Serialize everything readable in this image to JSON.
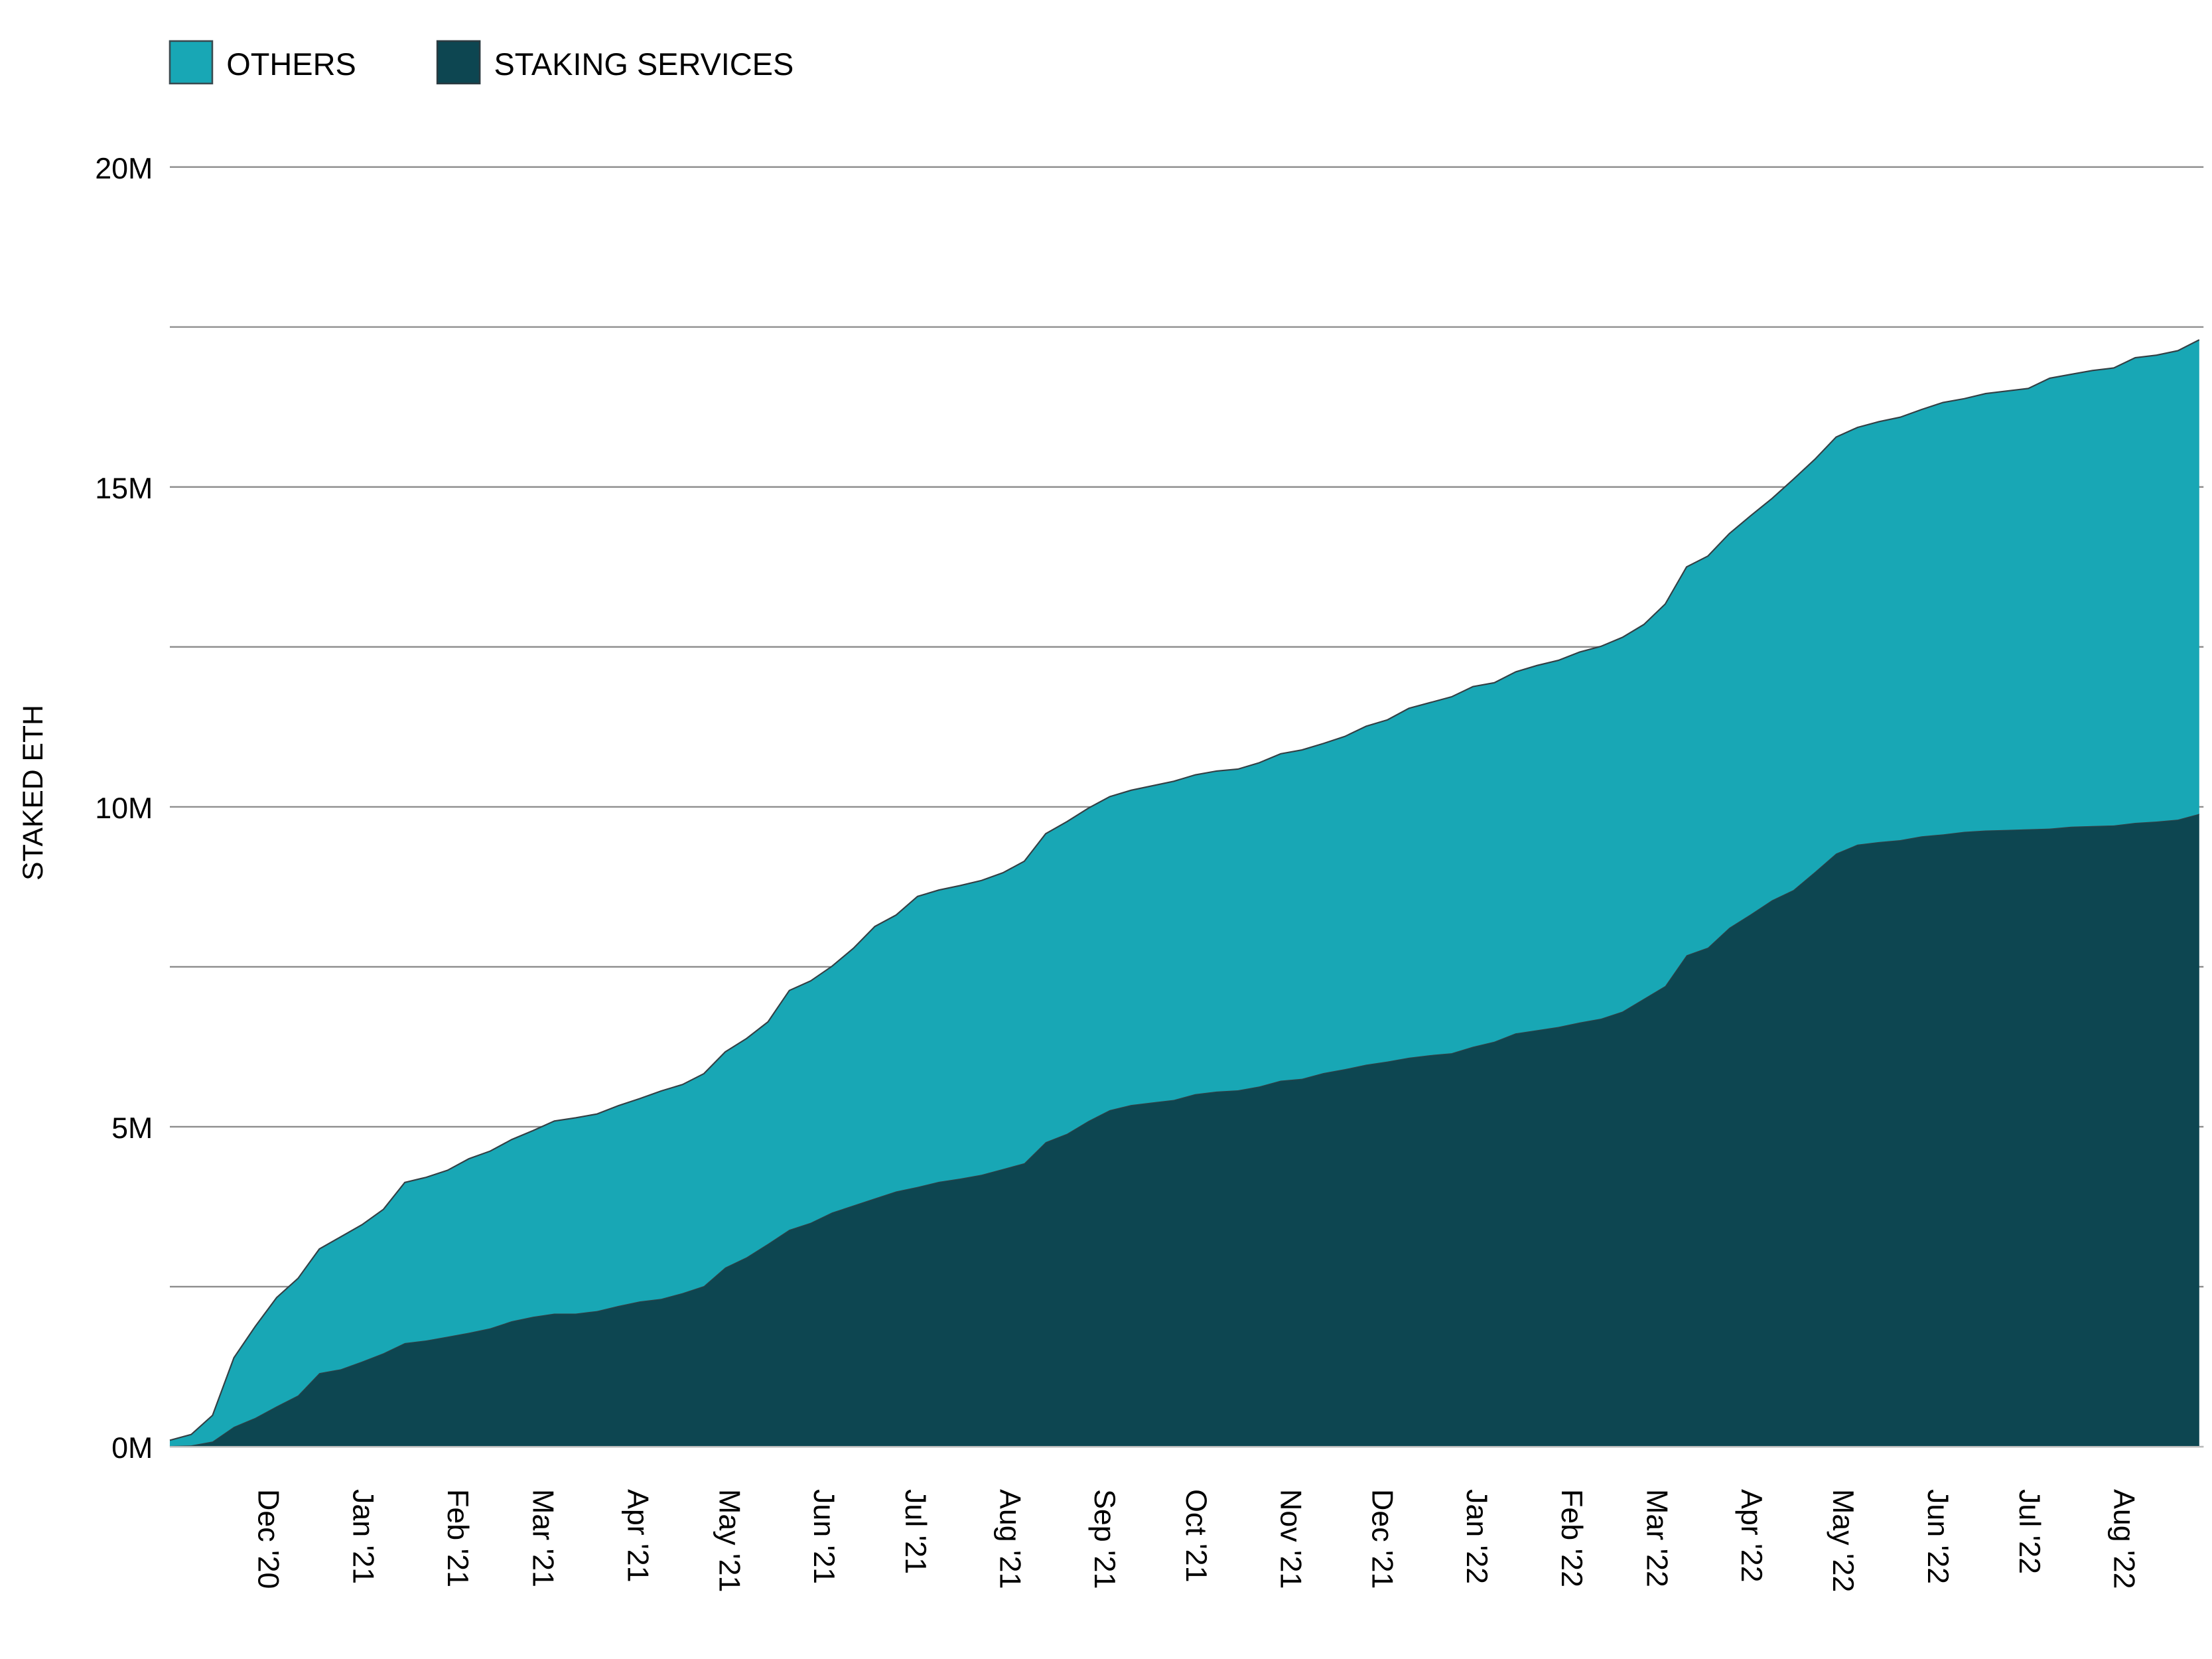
{
  "chart_data": {
    "type": "area",
    "stacked": true,
    "title": "",
    "xlabel": "",
    "ylabel": "STAKED ETH",
    "ylim": [
      0,
      20
    ],
    "y_unit": "M",
    "y_ticks": [
      {
        "value": 0,
        "label": "0M"
      },
      {
        "value": 5,
        "label": "5M"
      },
      {
        "value": 10,
        "label": "10M"
      },
      {
        "value": 15,
        "label": "15M"
      },
      {
        "value": 20,
        "label": "20M"
      }
    ],
    "y_gridlines": [
      0,
      2.5,
      5,
      7.5,
      10,
      12.5,
      15,
      17.5,
      20
    ],
    "grid": true,
    "legend_position": "top-left",
    "x_ticks": [
      {
        "date": "2020-12-01",
        "label": "Dec '20"
      },
      {
        "date": "2021-01-01",
        "label": "Jan '21"
      },
      {
        "date": "2021-02-01",
        "label": "Feb '21"
      },
      {
        "date": "2021-03-01",
        "label": "Mar '21"
      },
      {
        "date": "2021-04-01",
        "label": "Apr '21"
      },
      {
        "date": "2021-05-01",
        "label": "May '21"
      },
      {
        "date": "2021-06-01",
        "label": "Jun '21"
      },
      {
        "date": "2021-07-01",
        "label": "Jul '21"
      },
      {
        "date": "2021-08-01",
        "label": "Aug '21"
      },
      {
        "date": "2021-09-01",
        "label": "Sep '21"
      },
      {
        "date": "2021-10-01",
        "label": "Oct '21"
      },
      {
        "date": "2021-11-01",
        "label": "Nov '21"
      },
      {
        "date": "2021-12-01",
        "label": "Dec '21"
      },
      {
        "date": "2022-01-01",
        "label": "Jan '22"
      },
      {
        "date": "2022-02-01",
        "label": "Feb '22"
      },
      {
        "date": "2022-03-01",
        "label": "Mar '22"
      },
      {
        "date": "2022-04-01",
        "label": "Apr '22"
      },
      {
        "date": "2022-05-01",
        "label": "May '22"
      },
      {
        "date": "2022-06-01",
        "label": "Jun '22"
      },
      {
        "date": "2022-07-01",
        "label": "Jul '22"
      },
      {
        "date": "2022-08-01",
        "label": "Aug '22"
      }
    ],
    "x": [
      "2020-11-01",
      "2020-11-08",
      "2020-11-15",
      "2020-11-22",
      "2020-11-29",
      "2020-12-06",
      "2020-12-13",
      "2020-12-20",
      "2020-12-27",
      "2021-01-03",
      "2021-01-10",
      "2021-01-17",
      "2021-01-24",
      "2021-01-31",
      "2021-02-07",
      "2021-02-14",
      "2021-02-21",
      "2021-02-28",
      "2021-03-07",
      "2021-03-14",
      "2021-03-21",
      "2021-03-28",
      "2021-04-04",
      "2021-04-11",
      "2021-04-18",
      "2021-04-25",
      "2021-05-02",
      "2021-05-09",
      "2021-05-16",
      "2021-05-23",
      "2021-05-30",
      "2021-06-06",
      "2021-06-13",
      "2021-06-20",
      "2021-06-27",
      "2021-07-04",
      "2021-07-11",
      "2021-07-18",
      "2021-07-25",
      "2021-08-01",
      "2021-08-08",
      "2021-08-15",
      "2021-08-22",
      "2021-08-29",
      "2021-09-05",
      "2021-09-12",
      "2021-09-19",
      "2021-09-26",
      "2021-10-03",
      "2021-10-10",
      "2021-10-17",
      "2021-10-24",
      "2021-10-31",
      "2021-11-07",
      "2021-11-14",
      "2021-11-21",
      "2021-11-28",
      "2021-12-05",
      "2021-12-12",
      "2021-12-19",
      "2021-12-26",
      "2022-01-02",
      "2022-01-09",
      "2022-01-16",
      "2022-01-23",
      "2022-01-30",
      "2022-02-06",
      "2022-02-13",
      "2022-02-20",
      "2022-02-27",
      "2022-03-06",
      "2022-03-13",
      "2022-03-20",
      "2022-03-27",
      "2022-04-03",
      "2022-04-10",
      "2022-04-17",
      "2022-04-24",
      "2022-05-01",
      "2022-05-08",
      "2022-05-15",
      "2022-05-22",
      "2022-05-29",
      "2022-06-05",
      "2022-06-12",
      "2022-06-19",
      "2022-06-26",
      "2022-07-03",
      "2022-07-10",
      "2022-07-17",
      "2022-07-24",
      "2022-07-31",
      "2022-08-07",
      "2022-08-14",
      "2022-08-21",
      "2022-08-28"
    ],
    "series": [
      {
        "name": "STAKING SERVICES",
        "color": "#0D4651",
        "values": [
          0.01,
          0.02,
          0.08,
          0.31,
          0.45,
          0.63,
          0.8,
          1.15,
          1.21,
          1.33,
          1.46,
          1.62,
          1.66,
          1.72,
          1.78,
          1.85,
          1.96,
          2.03,
          2.08,
          2.08,
          2.12,
          2.2,
          2.27,
          2.31,
          2.4,
          2.51,
          2.8,
          2.96,
          3.17,
          3.39,
          3.5,
          3.66,
          3.77,
          3.88,
          3.99,
          4.06,
          4.14,
          4.19,
          4.25,
          4.34,
          4.43,
          4.76,
          4.89,
          5.09,
          5.26,
          5.34,
          5.38,
          5.42,
          5.51,
          5.55,
          5.57,
          5.63,
          5.72,
          5.75,
          5.84,
          5.9,
          5.97,
          6.02,
          6.08,
          6.12,
          6.15,
          6.25,
          6.33,
          6.46,
          6.51,
          6.56,
          6.63,
          6.69,
          6.8,
          7.0,
          7.2,
          7.68,
          7.8,
          8.11,
          8.32,
          8.54,
          8.7,
          8.98,
          9.27,
          9.41,
          9.45,
          9.48,
          9.54,
          9.57,
          9.61,
          9.63,
          9.64,
          9.65,
          9.66,
          9.69,
          9.7,
          9.71,
          9.75,
          9.77,
          9.8,
          9.89
        ]
      },
      {
        "name": "OTHERS",
        "color": "#18A7B5",
        "values": [
          0.09,
          0.17,
          0.41,
          1.08,
          1.43,
          1.7,
          1.83,
          1.94,
          2.07,
          2.14,
          2.25,
          2.51,
          2.55,
          2.6,
          2.72,
          2.77,
          2.84,
          2.91,
          3.01,
          3.06,
          3.08,
          3.13,
          3.17,
          3.25,
          3.26,
          3.32,
          3.37,
          3.42,
          3.47,
          3.74,
          3.78,
          3.85,
          4.02,
          4.25,
          4.32,
          4.54,
          4.56,
          4.58,
          4.6,
          4.63,
          4.72,
          4.82,
          4.88,
          4.89,
          4.9,
          4.92,
          4.95,
          4.98,
          4.99,
          5.01,
          5.02,
          5.06,
          5.11,
          5.14,
          5.15,
          5.2,
          5.29,
          5.34,
          5.46,
          5.51,
          5.57,
          5.63,
          5.61,
          5.65,
          5.7,
          5.73,
          5.79,
          5.82,
          5.85,
          5.85,
          5.97,
          6.07,
          6.12,
          6.16,
          6.23,
          6.28,
          6.42,
          6.45,
          6.51,
          6.52,
          6.57,
          6.61,
          6.67,
          6.75,
          6.77,
          6.83,
          6.86,
          6.89,
          7.04,
          7.07,
          7.12,
          7.15,
          7.27,
          7.29,
          7.33,
          7.41
        ]
      }
    ],
    "legend": [
      {
        "label": "OTHERS",
        "color": "#18A7B5"
      },
      {
        "label": "STAKING SERVICES",
        "color": "#0D4651"
      }
    ]
  }
}
